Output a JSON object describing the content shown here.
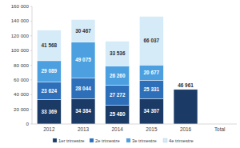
{
  "chart_data": {
    "type": "bar",
    "stacked": true,
    "data_labels": true,
    "grid": false,
    "legend": "bottom",
    "categories": [
      "2012",
      "2013",
      "2014",
      "2015",
      "2016",
      "Total"
    ],
    "ylim": [
      0,
      160000
    ],
    "yticks": [
      0,
      {
        "value": 20000,
        "label": "20 000"
      },
      {
        "value": 40000,
        "label": "40 000"
      },
      {
        "value": 60000,
        "label": "60 000"
      },
      {
        "value": 80000,
        "label": "80 000"
      },
      {
        "value": 100000,
        "label": "100 000"
      },
      {
        "value": 120000,
        "label": "120 000"
      },
      {
        "value": 140000,
        "label": "140 000"
      },
      {
        "value": 160000,
        "label": "160 000"
      }
    ],
    "series": [
      {
        "name": "1er trimestre",
        "color": "#1b3a66",
        "values": [
          33369,
          34384,
          25480,
          34307,
          46961,
          null
        ],
        "value_labels": [
          "33 369",
          "34 384",
          "25 480",
          "34 307",
          "46 961",
          null
        ]
      },
      {
        "name": "2e trimestre",
        "color": "#2e6fba",
        "values": [
          23624,
          28044,
          27272,
          25331,
          null,
          null
        ],
        "value_labels": [
          "23 624",
          "28 044",
          "27 272",
          "25 331",
          null,
          null
        ]
      },
      {
        "name": "3e trimestre",
        "color": "#4da0e0",
        "values": [
          29089,
          49075,
          26260,
          20677,
          null,
          null
        ],
        "value_labels": [
          "29 089",
          "49 075",
          "26 260",
          "20 677",
          null,
          null
        ]
      },
      {
        "name": "4e trimestre",
        "color": "#d6ebf8",
        "values": [
          41568,
          30467,
          33536,
          66037,
          null,
          null
        ],
        "value_labels": [
          "41 568",
          "30 467",
          "33 536",
          "66 037",
          null,
          null
        ]
      }
    ]
  }
}
